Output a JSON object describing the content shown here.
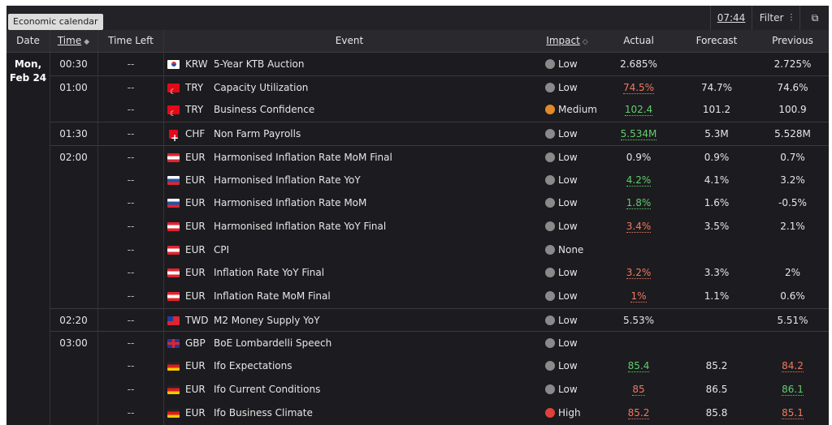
{
  "toolbar": {
    "tooltip": "Economic calendar",
    "time": "07:44",
    "filter_label": "Filter",
    "filter_icon": "sliders-icon",
    "external_icon": "external-link-icon"
  },
  "columns": {
    "date": "Date",
    "time": "Time",
    "time_left": "Time Left",
    "event": "Event",
    "impact": "Impact",
    "actual": "Actual",
    "forecast": "Forecast",
    "previous": "Previous"
  },
  "date_group": {
    "day": "Mon,",
    "date": "Feb 24"
  },
  "rows": [
    {
      "time": "00:30",
      "left": "--",
      "flag": "kr",
      "currency": "KRW",
      "event": "5-Year KTB Auction",
      "impact": "Low",
      "actual": "2.685%",
      "actual_dir": "",
      "forecast": "",
      "previous": "2.725%",
      "prev_dir": ""
    },
    {
      "time": "01:00",
      "left": "--",
      "flag": "tr",
      "currency": "TRY",
      "event": "Capacity Utilization",
      "impact": "Low",
      "actual": "74.5%",
      "actual_dir": "down",
      "forecast": "74.7%",
      "previous": "74.6%",
      "prev_dir": ""
    },
    {
      "time": "",
      "left": "--",
      "flag": "tr",
      "currency": "TRY",
      "event": "Business Confidence",
      "impact": "Medium",
      "actual": "102.4",
      "actual_dir": "up",
      "forecast": "101.2",
      "previous": "100.9",
      "prev_dir": ""
    },
    {
      "time": "01:30",
      "left": "--",
      "flag": "ch",
      "currency": "CHF",
      "event": "Non Farm Payrolls",
      "impact": "Low",
      "actual": "5.534M",
      "actual_dir": "up",
      "forecast": "5.3M",
      "previous": "5.528M",
      "prev_dir": ""
    },
    {
      "time": "02:00",
      "left": "--",
      "flag": "at",
      "currency": "EUR",
      "event": "Harmonised Inflation Rate MoM Final",
      "impact": "Low",
      "actual": "0.9%",
      "actual_dir": "",
      "forecast": "0.9%",
      "previous": "0.7%",
      "prev_dir": ""
    },
    {
      "time": "",
      "left": "--",
      "flag": "sk",
      "currency": "EUR",
      "event": "Harmonised Inflation Rate YoY",
      "impact": "Low",
      "actual": "4.2%",
      "actual_dir": "up",
      "forecast": "4.1%",
      "previous": "3.2%",
      "prev_dir": ""
    },
    {
      "time": "",
      "left": "--",
      "flag": "sk",
      "currency": "EUR",
      "event": "Harmonised Inflation Rate MoM",
      "impact": "Low",
      "actual": "1.8%",
      "actual_dir": "up",
      "forecast": "1.6%",
      "previous": "-0.5%",
      "prev_dir": ""
    },
    {
      "time": "",
      "left": "--",
      "flag": "at",
      "currency": "EUR",
      "event": "Harmonised Inflation Rate YoY Final",
      "impact": "Low",
      "actual": "3.4%",
      "actual_dir": "down",
      "forecast": "3.5%",
      "previous": "2.1%",
      "prev_dir": ""
    },
    {
      "time": "",
      "left": "--",
      "flag": "at",
      "currency": "EUR",
      "event": "CPI",
      "impact": "None",
      "actual": "",
      "actual_dir": "",
      "forecast": "",
      "previous": "",
      "prev_dir": ""
    },
    {
      "time": "",
      "left": "--",
      "flag": "at",
      "currency": "EUR",
      "event": "Inflation Rate YoY Final",
      "impact": "Low",
      "actual": "3.2%",
      "actual_dir": "down",
      "forecast": "3.3%",
      "previous": "2%",
      "prev_dir": ""
    },
    {
      "time": "",
      "left": "--",
      "flag": "at",
      "currency": "EUR",
      "event": "Inflation Rate MoM Final",
      "impact": "Low",
      "actual": "1%",
      "actual_dir": "down",
      "forecast": "1.1%",
      "previous": "0.6%",
      "prev_dir": ""
    },
    {
      "time": "02:20",
      "left": "--",
      "flag": "tw",
      "currency": "TWD",
      "event": "M2 Money Supply YoY",
      "impact": "Low",
      "actual": "5.53%",
      "actual_dir": "",
      "forecast": "",
      "previous": "5.51%",
      "prev_dir": ""
    },
    {
      "time": "03:00",
      "left": "--",
      "flag": "gb",
      "currency": "GBP",
      "event": "BoE Lombardelli Speech",
      "impact": "Low",
      "actual": "",
      "actual_dir": "",
      "forecast": "",
      "previous": "",
      "prev_dir": ""
    },
    {
      "time": "",
      "left": "--",
      "flag": "de",
      "currency": "EUR",
      "event": "Ifo Expectations",
      "impact": "Low",
      "actual": "85.4",
      "actual_dir": "up",
      "forecast": "85.2",
      "previous": "84.2",
      "prev_dir": "down"
    },
    {
      "time": "",
      "left": "--",
      "flag": "de",
      "currency": "EUR",
      "event": "Ifo Current Conditions",
      "impact": "Low",
      "actual": "85",
      "actual_dir": "down",
      "forecast": "86.5",
      "previous": "86.1",
      "prev_dir": "up"
    },
    {
      "time": "",
      "left": "--",
      "flag": "de",
      "currency": "EUR",
      "event": "Ifo Business Climate",
      "impact": "High",
      "actual": "85.2",
      "actual_dir": "down",
      "forecast": "85.8",
      "previous": "85.1",
      "prev_dir": "down"
    }
  ]
}
